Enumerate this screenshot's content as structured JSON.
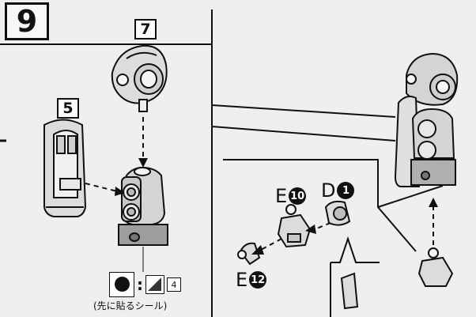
{
  "step": {
    "number": "9"
  },
  "reference_boxes": {
    "top": "7",
    "left": "5"
  },
  "part_labels": {
    "e10": {
      "letter": "E",
      "num": "10"
    },
    "d1": {
      "letter": "D",
      "num": "1"
    },
    "e12": {
      "letter": "E",
      "num": "12"
    }
  },
  "sticker": {
    "colon": ":",
    "number": "4",
    "caption": "(先に貼るシール)"
  }
}
